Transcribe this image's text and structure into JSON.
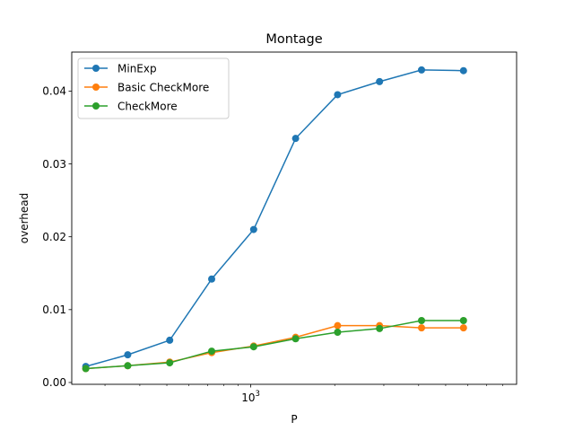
{
  "chart_data": {
    "type": "line",
    "title": "Montage",
    "xlabel": "P",
    "ylabel": "overhead",
    "x_scale": "log",
    "xlim": [
      228,
      8980
    ],
    "ylim": [
      -0.00025,
      0.04535
    ],
    "x_ticks": [
      {
        "value": 1000,
        "base": "10",
        "exp": "3"
      }
    ],
    "y_ticks": [
      {
        "value": 0.0,
        "label": "0.00"
      },
      {
        "value": 0.01,
        "label": "0.01"
      },
      {
        "value": 0.02,
        "label": "0.02"
      },
      {
        "value": 0.03,
        "label": "0.03"
      },
      {
        "value": 0.04,
        "label": "0.04"
      }
    ],
    "grid": false,
    "legend": "top-left",
    "x": [
      256,
      362,
      512,
      724,
      1024,
      1448,
      2048,
      2896,
      4096,
      5792
    ],
    "series": [
      {
        "name": "MinExp",
        "color": "#1f77b4",
        "values": [
          0.0022,
          0.0038,
          0.0058,
          0.0142,
          0.021,
          0.0335,
          0.0395,
          0.0413,
          0.0429,
          0.0428
        ]
      },
      {
        "name": "Basic CheckMore",
        "color": "#ff7f0e",
        "values": [
          0.0019,
          0.0023,
          0.0028,
          0.0041,
          0.005,
          0.0062,
          0.0078,
          0.0078,
          0.0075,
          0.0075
        ]
      },
      {
        "name": "CheckMore",
        "color": "#2ca02c",
        "values": [
          0.0019,
          0.0023,
          0.0027,
          0.0043,
          0.0049,
          0.006,
          0.0069,
          0.0074,
          0.0085,
          0.0085
        ]
      }
    ]
  }
}
